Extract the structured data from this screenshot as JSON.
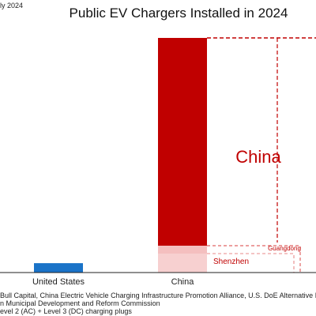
{
  "header": {
    "date_note": "ly 2024"
  },
  "chart_data": {
    "type": "bar",
    "title": "Public EV Chargers Installed in 2024",
    "xlabel": "",
    "ylabel": "",
    "categories": [
      "United States",
      "China"
    ],
    "values": [
      40,
      1000
    ],
    "ylim": [
      0,
      1000
    ],
    "bar_colors": [
      "#1a73c8",
      "#c00000"
    ],
    "grid": false,
    "legend": "none",
    "china_breakdown": [
      {
        "label": "China",
        "share": 1.0,
        "color": "#c00000",
        "style": "dashed-outline"
      },
      {
        "label": "Guangdong",
        "share": 0.12,
        "color": "#f4bfbf",
        "style": "dashed-outline"
      },
      {
        "label": "Shenzhen",
        "share": 0.09,
        "color": "#f4bfbf",
        "style": "dashed-outline"
      }
    ],
    "annotations": {
      "china": "China",
      "guangdong": "Guangdong",
      "shenzhen": "Shenzhen"
    }
  },
  "footer": {
    "source_lines": [
      "Bull Capital, China Electric Vehicle Charging Infrastructure Promotion Alliance, U.S. DoE Alternative Fuels",
      "n Municipal Development and Reform Commission",
      "evel 2 (AC) + Level 3 (DC) charging plugs"
    ]
  }
}
